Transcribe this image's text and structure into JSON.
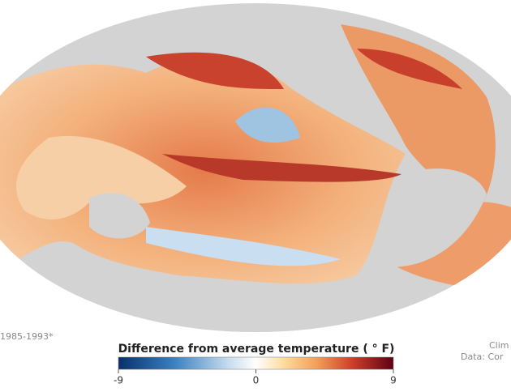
{
  "legend": {
    "title": "Difference from average temperature ( ° F)",
    "range": [
      -9,
      9
    ],
    "ticks": [
      -9,
      0,
      9
    ]
  },
  "footer": {
    "left": "1985-1993*",
    "right": [
      "Clim",
      "Data: Cor"
    ]
  }
}
